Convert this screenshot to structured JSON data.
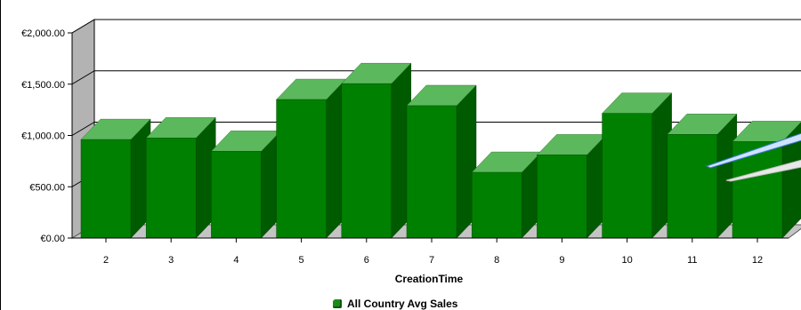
{
  "chart_data": {
    "type": "bar",
    "xlabel": "CreationTime",
    "ylabel": "",
    "categories": [
      "2",
      "3",
      "4",
      "5",
      "6",
      "7",
      "8",
      "9",
      "10",
      "11",
      "12"
    ],
    "series": [
      {
        "name": "All Country Avg Sales",
        "values": [
          960,
          975,
          845,
          1350,
          1505,
          1290,
          640,
          810,
          1215,
          1010,
          940
        ]
      }
    ],
    "ylim": [
      0,
      2000
    ],
    "yticks": [
      0,
      500,
      1000,
      1500,
      2000
    ],
    "ytick_labels": [
      "€0.00",
      "€500.00",
      "€1,000.00",
      "€1,500.00",
      "€2,000.00"
    ],
    "grid": true,
    "legend": "bottom",
    "colors": {
      "bar_front": "#008000",
      "bar_top": "#5cb85c",
      "bar_side": "#005a00",
      "wall": "#b3b3b3",
      "floor": "#c4c4c4"
    }
  }
}
